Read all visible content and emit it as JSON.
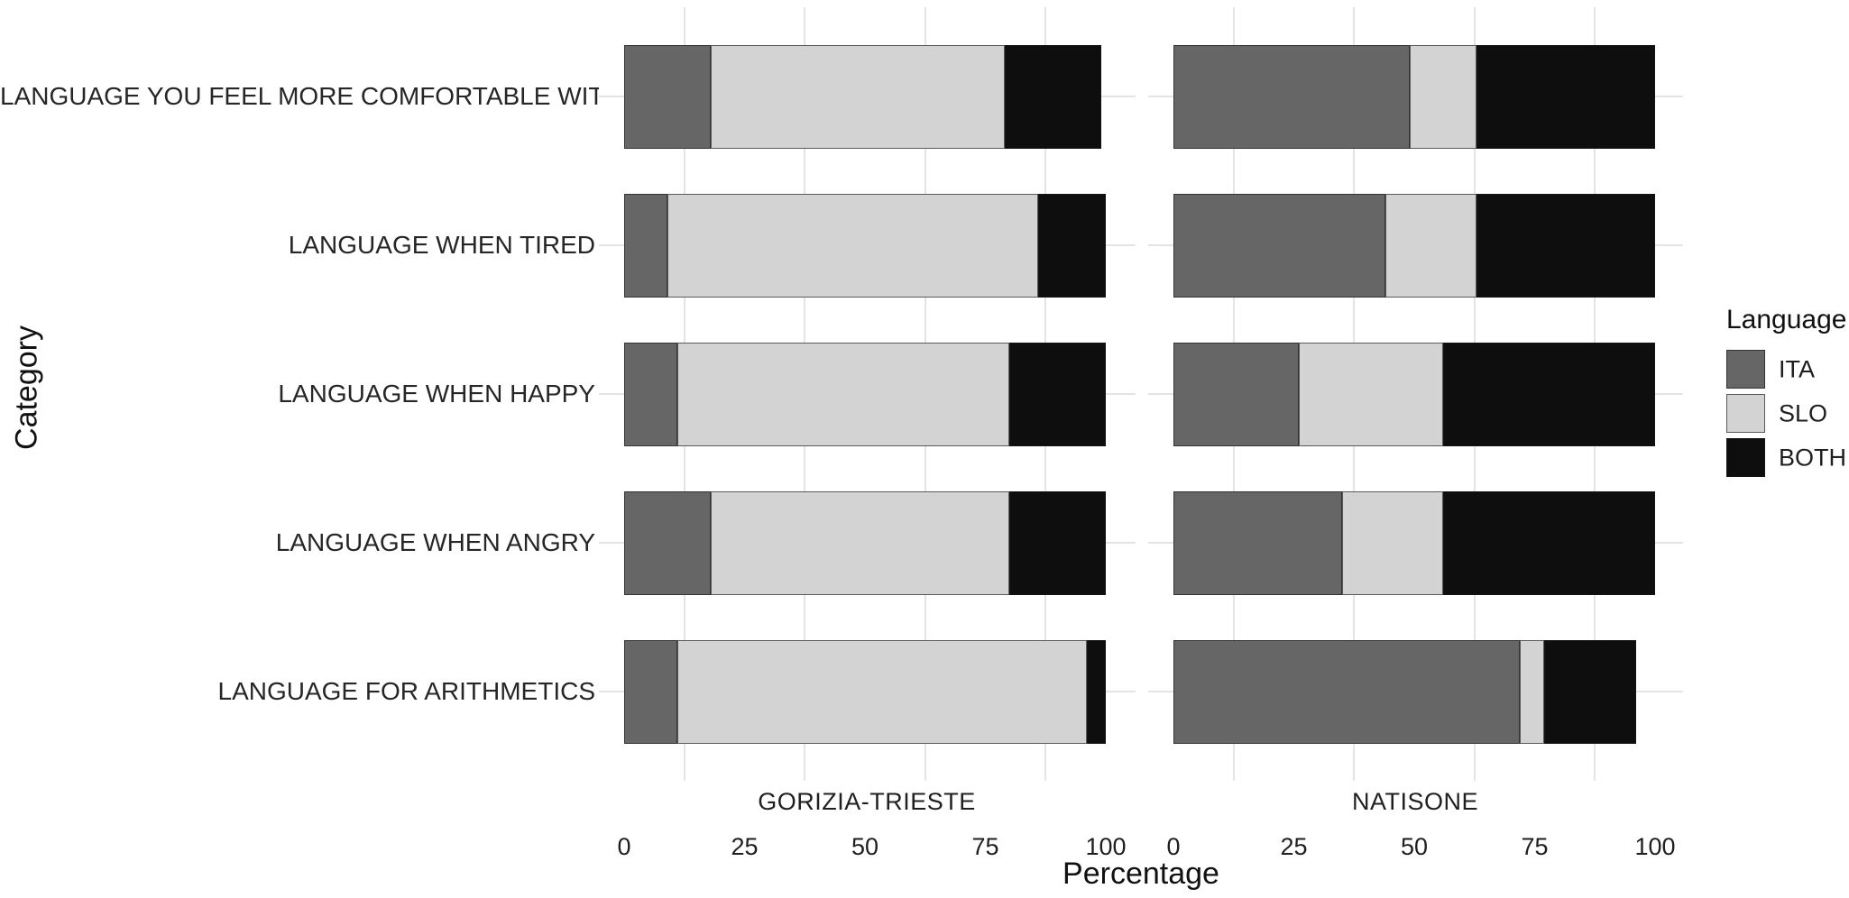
{
  "chart_data": {
    "type": "bar",
    "orientation": "horizontal",
    "stacked": true,
    "title": "",
    "xlabel": "Percentage",
    "ylabel": "Category",
    "xlim": [
      0,
      100
    ],
    "x_ticks": [
      0,
      25,
      50,
      75,
      100
    ],
    "grid": "minor vertical gridlines at 12.5/37.5/62.5/87.5 and horizontal gridline per category",
    "categories": [
      "LANGUAGE YOU FEEL MORE COMFORTABLE WITH",
      "LANGUAGE WHEN TIRED",
      "LANGUAGE WHEN HAPPY",
      "LANGUAGE WHEN ANGRY",
      "LANGUAGE FOR ARITHMETICS"
    ],
    "facets": [
      {
        "name": "GORIZIA-TRIESTE",
        "series": [
          {
            "name": "ITA",
            "values": [
              18,
              9,
              11,
              18,
              11
            ]
          },
          {
            "name": "SLO",
            "values": [
              61,
              77,
              69,
              62,
              85
            ]
          },
          {
            "name": "BOTH",
            "values": [
              20,
              14,
              20,
              20,
              4
            ]
          }
        ]
      },
      {
        "name": "NATISONE",
        "series": [
          {
            "name": "ITA",
            "values": [
              49,
              44,
              26,
              35,
              72
            ]
          },
          {
            "name": "SLO",
            "values": [
              14,
              19,
              30,
              21,
              5
            ]
          },
          {
            "name": "BOTH",
            "values": [
              37,
              37,
              44,
              44,
              19
            ]
          }
        ]
      }
    ],
    "legend": {
      "title": "Language",
      "entries": [
        "ITA",
        "SLO",
        "BOTH"
      ],
      "position": "right"
    },
    "colors": {
      "ITA": "#666666",
      "SLO": "#d3d3d3",
      "BOTH": "#0e0e0e"
    }
  }
}
